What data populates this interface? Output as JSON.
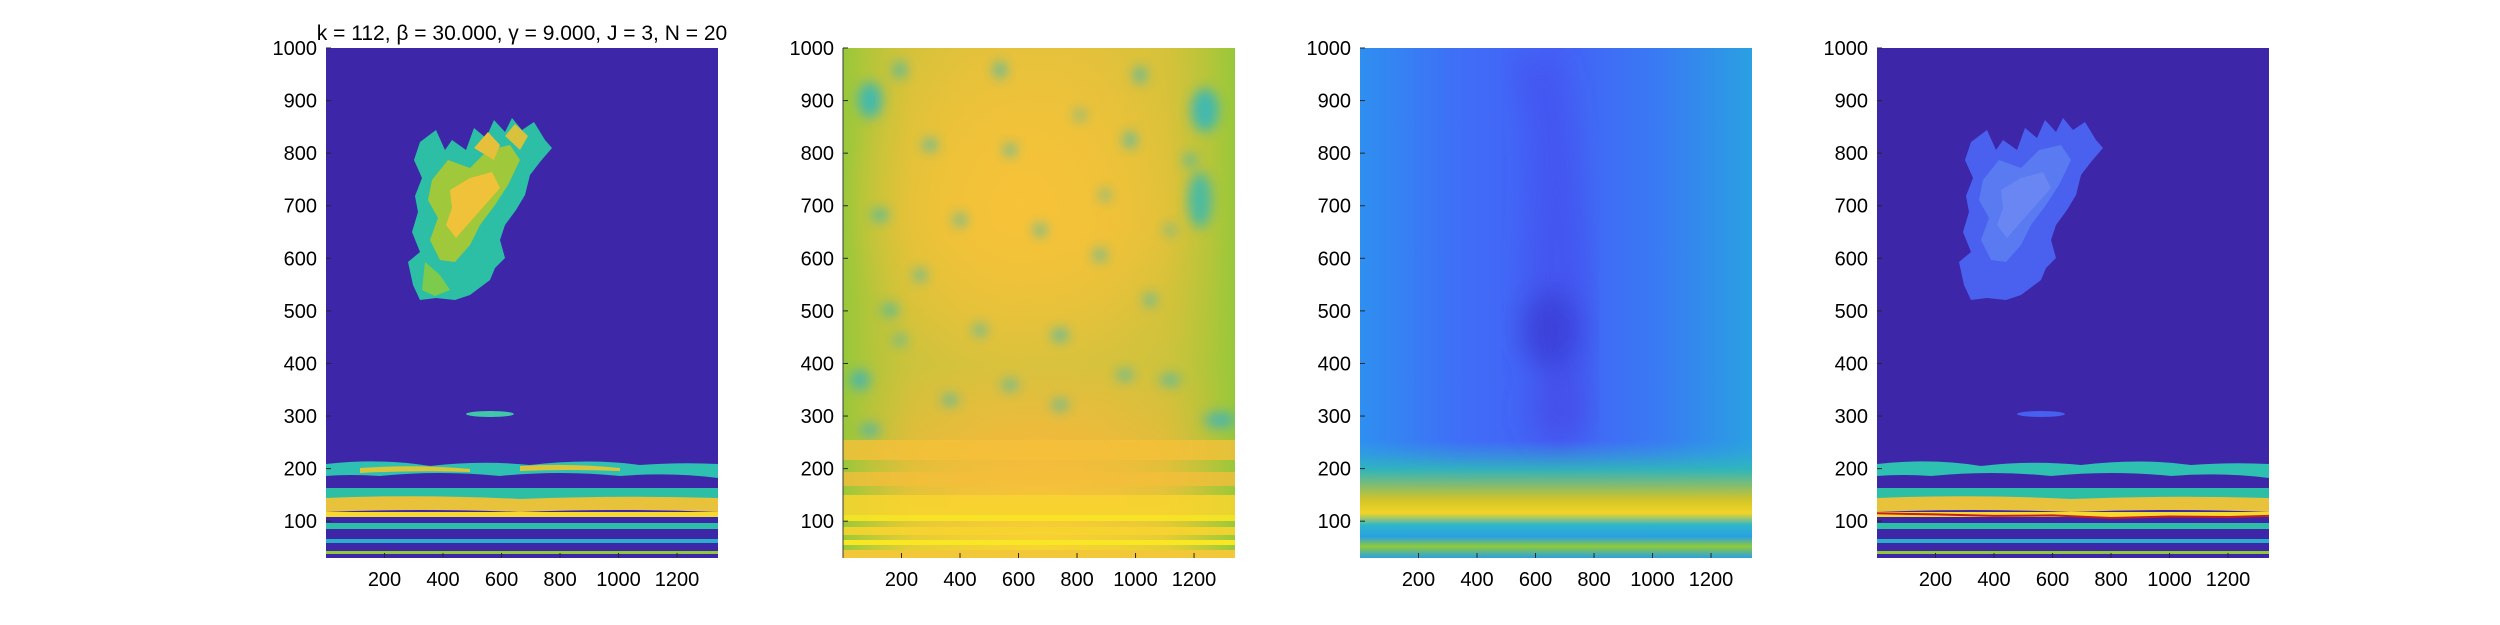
{
  "figure": {
    "title": "k = 112, β = 30.000, γ = 9.000, J = 3, N = 20"
  },
  "colors": {
    "background": "#ffffff",
    "axis_line": "#000000",
    "parula_dark": "#3e26a8",
    "parula_blue": "#4669f5",
    "parula_cyan": "#2da6da",
    "parula_teal": "#25c4a0",
    "parula_green": "#8ec93a",
    "parula_orange": "#f9bc3a",
    "parula_yellow": "#f9f917",
    "trace_red": "#c41e1e"
  },
  "chart_data": [
    {
      "type": "heatmap",
      "panel": "thresholded-mask",
      "title": "k = 112, β = 30.000, γ = 9.000, J = 3, N = 20",
      "xlim": [
        0,
        1340
      ],
      "ylim": [
        30,
        1000
      ],
      "xticks": [
        200,
        400,
        600,
        800,
        1000,
        1200
      ],
      "yticks": [
        100,
        200,
        300,
        400,
        500,
        600,
        700,
        800,
        900,
        1000
      ],
      "grid": false
    },
    {
      "type": "heatmap",
      "panel": "wavelet-magnitude",
      "xlim": [
        0,
        1340
      ],
      "ylim": [
        30,
        1000
      ],
      "xticks": [
        200,
        400,
        600,
        800,
        1000,
        1200
      ],
      "yticks": [
        100,
        200,
        300,
        400,
        500,
        600,
        700,
        800,
        900,
        1000
      ],
      "grid": false
    },
    {
      "type": "heatmap",
      "panel": "smoothed-energy",
      "xlim": [
        0,
        1340
      ],
      "ylim": [
        30,
        1000
      ],
      "xticks": [
        200,
        400,
        600,
        800,
        1000,
        1200
      ],
      "yticks": [
        100,
        200,
        300,
        400,
        500,
        600,
        700,
        800,
        900,
        1000
      ],
      "grid": false
    },
    {
      "type": "heatmap",
      "panel": "mask-with-ridge",
      "xlim": [
        0,
        1340
      ],
      "ylim": [
        30,
        1000
      ],
      "xticks": [
        200,
        400,
        600,
        800,
        1000,
        1200
      ],
      "yticks": [
        100,
        200,
        300,
        400,
        500,
        600,
        700,
        800,
        900,
        1000
      ],
      "grid": false,
      "ridge": {
        "x": [
          0,
          200,
          400,
          600,
          800,
          1000,
          1200,
          1340
        ],
        "y": [
          115,
          113,
          110,
          111,
          106,
          109,
          108,
          110
        ]
      }
    }
  ]
}
